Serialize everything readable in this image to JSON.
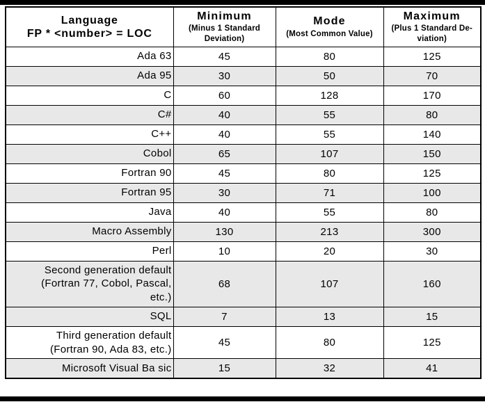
{
  "colors": {
    "row_shade": "#e8e8e8",
    "border": "#000000",
    "rule": "#000000"
  },
  "table": {
    "header": {
      "language": {
        "title": "Language",
        "subtitle": "FP * <number> = LOC"
      },
      "minimum": {
        "title": "Minimum",
        "subtitle": "(Minus 1 Standard\nDeviation)"
      },
      "mode": {
        "title": "Mode",
        "subtitle": "(Most Common Value)"
      },
      "maximum": {
        "title": "Maximum",
        "subtitle": "(Plus 1 Standard De-\nviation)"
      }
    },
    "rows": [
      {
        "language": "Ada 63",
        "minimum": "45",
        "mode": "80",
        "maximum": "125",
        "shaded": false
      },
      {
        "language": "Ada 95",
        "minimum": "30",
        "mode": "50",
        "maximum": "70",
        "shaded": true
      },
      {
        "language": "C",
        "minimum": "60",
        "mode": "128",
        "maximum": "170",
        "shaded": false
      },
      {
        "language": "C#",
        "minimum": "40",
        "mode": "55",
        "maximum": "80",
        "shaded": true
      },
      {
        "language": "C++",
        "minimum": "40",
        "mode": "55",
        "maximum": "140",
        "shaded": false
      },
      {
        "language": "Cobol",
        "minimum": "65",
        "mode": "107",
        "maximum": "150",
        "shaded": true
      },
      {
        "language": "Fortran 90",
        "minimum": "45",
        "mode": "80",
        "maximum": "125",
        "shaded": false
      },
      {
        "language": "Fortran 95",
        "minimum": "30",
        "mode": "71",
        "maximum": "100",
        "shaded": true
      },
      {
        "language": "Java",
        "minimum": "40",
        "mode": "55",
        "maximum": "80",
        "shaded": false
      },
      {
        "language": "Macro Assembly",
        "minimum": "130",
        "mode": "213",
        "maximum": "300",
        "shaded": true
      },
      {
        "language": "Perl",
        "minimum": "10",
        "mode": "20",
        "maximum": "30",
        "shaded": false
      },
      {
        "language": "Second generation default\n(Fortran 77, Cobol, Pascal,\netc.)",
        "minimum": "68",
        "mode": "107",
        "maximum": "160",
        "shaded": true
      },
      {
        "language": "SQL",
        "minimum": "7",
        "mode": "13",
        "maximum": "15",
        "shaded": true
      },
      {
        "language": "Third generation default\n(Fortran 90, Ada 83, etc.)",
        "minimum": "45",
        "mode": "80",
        "maximum": "125",
        "shaded": false
      },
      {
        "language": "Microsoft Visual Ba sic",
        "minimum": "15",
        "mode": "32",
        "maximum": "41",
        "shaded": true
      }
    ]
  }
}
